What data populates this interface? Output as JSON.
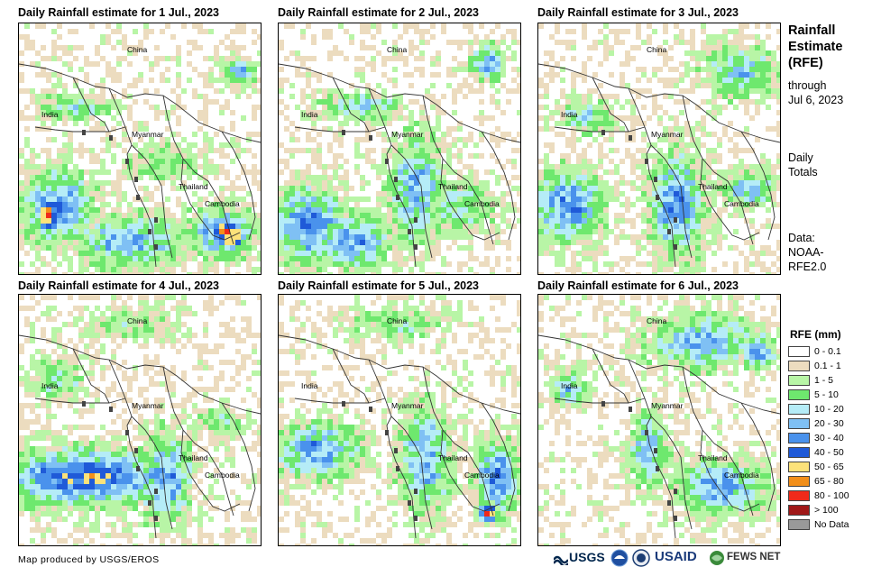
{
  "panels": [
    {
      "title": "Daily Rainfall estimate for 1 Jul., 2023"
    },
    {
      "title": "Daily Rainfall estimate for 2 Jul., 2023"
    },
    {
      "title": "Daily Rainfall estimate for 3 Jul., 2023"
    },
    {
      "title": "Daily Rainfall estimate for 4 Jul., 2023"
    },
    {
      "title": "Daily Rainfall estimate for 5 Jul., 2023"
    },
    {
      "title": "Daily Rainfall estimate for 6 Jul., 2023"
    }
  ],
  "map_labels": {
    "china": "China",
    "india": "India",
    "myanmar": "Myanmar",
    "thailand": "Thailand",
    "cambodia": "Cambodia"
  },
  "side": {
    "title_lines": [
      "Rainfall",
      "Estimate",
      "(RFE)"
    ],
    "through_lines": [
      "through",
      "Jul 6, 2023"
    ],
    "daily_lines": [
      "Daily",
      "Totals"
    ],
    "data_lines": [
      "Data:",
      "NOAA-",
      "RFE2.0"
    ]
  },
  "legend": {
    "title": "RFE (mm)",
    "items": [
      {
        "label": "0 - 0.1",
        "color": "#ffffff"
      },
      {
        "label": "0.1 - 1",
        "color": "#ecdcbf"
      },
      {
        "label": "1 - 5",
        "color": "#b8f5a6"
      },
      {
        "label": "5 - 10",
        "color": "#6ee86e"
      },
      {
        "label": "10 - 20",
        "color": "#b5ecf7"
      },
      {
        "label": "20 - 30",
        "color": "#7fc0f4"
      },
      {
        "label": "30 - 40",
        "color": "#4a92ec"
      },
      {
        "label": "40 - 50",
        "color": "#1f5ad8"
      },
      {
        "label": "50 - 65",
        "color": "#fce27a"
      },
      {
        "label": "65 - 80",
        "color": "#f28f1a"
      },
      {
        "label": "80 - 100",
        "color": "#f02a1a"
      },
      {
        "label": "> 100",
        "color": "#a01818"
      },
      {
        "label": "No Data",
        "color": "#999999"
      }
    ]
  },
  "credit": "Map produced by USGS/EROS",
  "logos": {
    "usgs": "USGS",
    "usaid": "USAID",
    "fews": "FEWS NET"
  }
}
